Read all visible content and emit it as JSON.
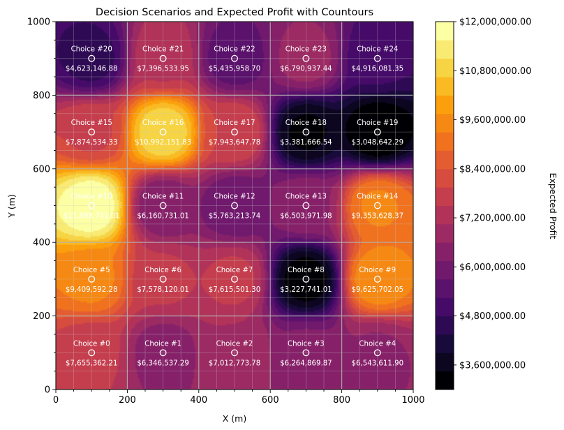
{
  "chart_data": {
    "type": "heatmap",
    "subtype": "filled-contour",
    "title": "Decision Scenarios and Expected Profit with Countours",
    "xlabel": "X (m)",
    "ylabel": "Y (m)",
    "xlim": [
      0,
      1000
    ],
    "ylim": [
      0,
      1000
    ],
    "x_ticks": [
      0,
      200,
      400,
      600,
      800,
      1000
    ],
    "y_ticks": [
      0,
      200,
      400,
      600,
      800,
      1000
    ],
    "x_tick_labels": [
      "0",
      "200",
      "400",
      "600",
      "800",
      "1000"
    ],
    "y_tick_labels": [
      "0",
      "200",
      "400",
      "600",
      "800",
      "1000"
    ],
    "x_minor_step": 50,
    "y_minor_step": 50,
    "grid": true,
    "colormap": "inferno",
    "colorbar": {
      "label": "Expected Profit",
      "range": [
        3000000,
        12000000
      ],
      "levels": 20,
      "ticks": [
        3600000,
        4800000,
        6000000,
        7200000,
        8400000,
        9600000,
        10800000,
        12000000
      ],
      "tick_labels": [
        "$3,600,000.00",
        "$4,800,000.00",
        "$6,000,000.00",
        "$7,200,000.00",
        "$8,400,000.00",
        "$9,600,000.00",
        "$10,800,000.00",
        "$12,000,000.00"
      ]
    },
    "points": [
      {
        "name": "Choice #0",
        "x": 100,
        "y": 100,
        "value": 7655362.21,
        "label": "$7,655,362.21"
      },
      {
        "name": "Choice #1",
        "x": 300,
        "y": 100,
        "value": 6346537.29,
        "label": "$6,346,537.29"
      },
      {
        "name": "Choice #2",
        "x": 500,
        "y": 100,
        "value": 7012773.78,
        "label": "$7,012,773.78"
      },
      {
        "name": "Choice #3",
        "x": 700,
        "y": 100,
        "value": 6264869.87,
        "label": "$6,264,869.87"
      },
      {
        "name": "Choice #4",
        "x": 900,
        "y": 100,
        "value": 6543611.9,
        "label": "$6,543,611.90"
      },
      {
        "name": "Choice #5",
        "x": 100,
        "y": 300,
        "value": 9409592.28,
        "label": "$9,409,592.28"
      },
      {
        "name": "Choice #6",
        "x": 300,
        "y": 300,
        "value": 7578120.01,
        "label": "$7,578,120.01"
      },
      {
        "name": "Choice #7",
        "x": 500,
        "y": 300,
        "value": 7615501.3,
        "label": "$7,615,501.30"
      },
      {
        "name": "Choice #8",
        "x": 700,
        "y": 300,
        "value": 3227741.01,
        "label": "$3,227,741.01"
      },
      {
        "name": "Choice #9",
        "x": 900,
        "y": 300,
        "value": 9625702.05,
        "label": "$9,625,702.05"
      },
      {
        "name": "Choice #10",
        "x": 100,
        "y": 500,
        "value": 11898741.01,
        "label": "$11,898,741.01"
      },
      {
        "name": "Choice #11",
        "x": 300,
        "y": 500,
        "value": 6160731.01,
        "label": "$6,160,731.01"
      },
      {
        "name": "Choice #12",
        "x": 500,
        "y": 500,
        "value": 5763213.74,
        "label": "$5,763,213.74"
      },
      {
        "name": "Choice #13",
        "x": 700,
        "y": 500,
        "value": 6503971.98,
        "label": "$6,503,971.98"
      },
      {
        "name": "Choice #14",
        "x": 900,
        "y": 500,
        "value": 9353628.37,
        "label": "$9,353,628.37"
      },
      {
        "name": "Choice #15",
        "x": 100,
        "y": 700,
        "value": 7874534.33,
        "label": "$7,874,534.33"
      },
      {
        "name": "Choice #16",
        "x": 300,
        "y": 700,
        "value": 10992151.83,
        "label": "$10,992,151.83"
      },
      {
        "name": "Choice #17",
        "x": 500,
        "y": 700,
        "value": 7943647.78,
        "label": "$7,943,647.78"
      },
      {
        "name": "Choice #18",
        "x": 700,
        "y": 700,
        "value": 3381666.54,
        "label": "$3,381,666.54"
      },
      {
        "name": "Choice #19",
        "x": 900,
        "y": 700,
        "value": 3048642.29,
        "label": "$3,048,642.29"
      },
      {
        "name": "Choice #20",
        "x": 100,
        "y": 900,
        "value": 4623146.88,
        "label": "$4,623,146.88"
      },
      {
        "name": "Choice #21",
        "x": 300,
        "y": 900,
        "value": 7396533.95,
        "label": "$7,396,533.95"
      },
      {
        "name": "Choice #22",
        "x": 500,
        "y": 900,
        "value": 5435958.7,
        "label": "$5,435,958.70"
      },
      {
        "name": "Choice #23",
        "x": 700,
        "y": 900,
        "value": 6790937.44,
        "label": "$6,790,937.44"
      },
      {
        "name": "Choice #24",
        "x": 900,
        "y": 900,
        "value": 4916081.35,
        "label": "$4,916,081.35"
      }
    ]
  }
}
